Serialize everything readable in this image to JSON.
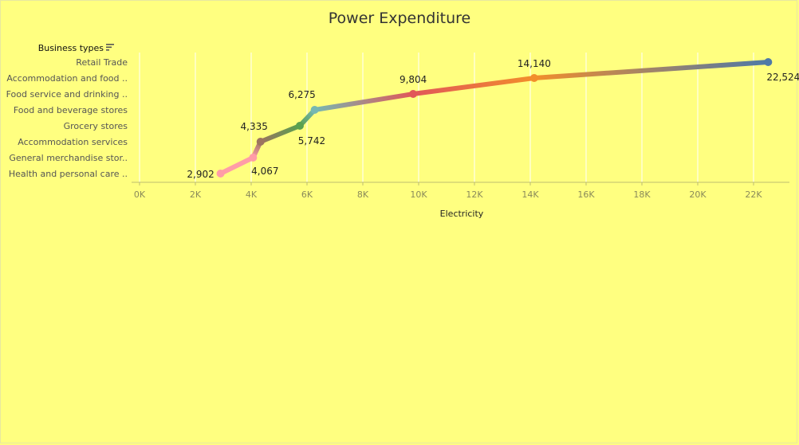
{
  "chart_data": {
    "type": "line",
    "title": "Power Expenditure",
    "xlabel": "Electricity",
    "ylabel": "Business types",
    "xlim": [
      0,
      23500
    ],
    "x_ticks": [
      0,
      2000,
      4000,
      6000,
      8000,
      10000,
      12000,
      14000,
      16000,
      18000,
      20000,
      22000
    ],
    "x_tick_labels": [
      "0K",
      "2K",
      "4K",
      "6K",
      "8K",
      "10K",
      "12K",
      "14K",
      "16K",
      "18K",
      "20K",
      "22K"
    ],
    "grid": true,
    "categories": [
      "Retail Trade",
      "Accommodation and food ..",
      "Food service and drinking ..",
      "Food and beverage stores",
      "Grocery stores",
      "Accommodation services",
      "General merchandise stor..",
      "Health and personal care .."
    ],
    "values": [
      22524,
      14140,
      9804,
      6275,
      5742,
      4335,
      4067,
      2902
    ],
    "data_labels": [
      "22,524",
      "14,140",
      "9,804",
      "6,275",
      "5,742",
      "4,335",
      "4,067",
      "2,902"
    ],
    "colors": [
      "#4E79A7",
      "#F28E2B",
      "#E15759",
      "#76B7B2",
      "#59A14F",
      "#9C755F",
      "#FF9DA7",
      "#FF9DA7"
    ]
  },
  "legend_icon": "sort-descending-icon"
}
